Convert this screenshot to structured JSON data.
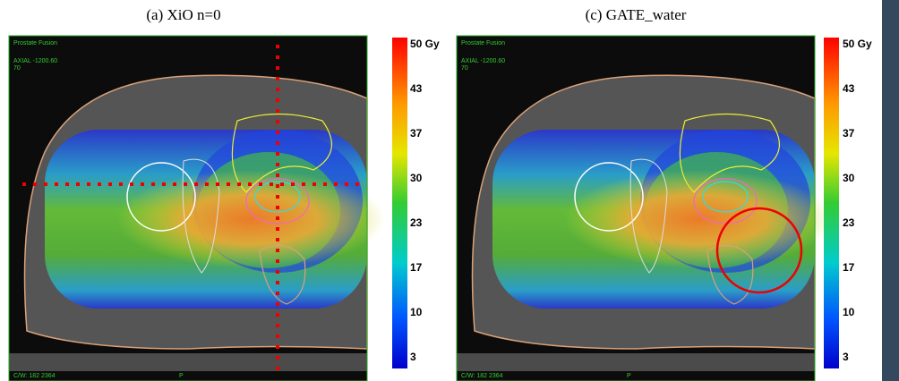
{
  "panels": [
    {
      "title": "(a) XiO n=0",
      "overlay": {
        "study": "Prostate Fusion",
        "view": "AXIAL -1200.60",
        "slice": "70",
        "window": "C/W: 182 2364",
        "marker": "P"
      },
      "colorbar": {
        "labels": [
          "50 Gy",
          "43",
          "37",
          "30",
          "23",
          "17",
          "10",
          "3"
        ]
      }
    },
    {
      "title": "(c) GATE_water",
      "overlay": {
        "study": "Prostate Fusion",
        "view": "AXIAL -1200.60",
        "slice": "70",
        "window": "C/W: 182 2364",
        "marker": "P"
      },
      "colorbar": {
        "labels": [
          "50 Gy",
          "43",
          "37",
          "30",
          "23",
          "17",
          "10",
          "3"
        ]
      }
    }
  ]
}
